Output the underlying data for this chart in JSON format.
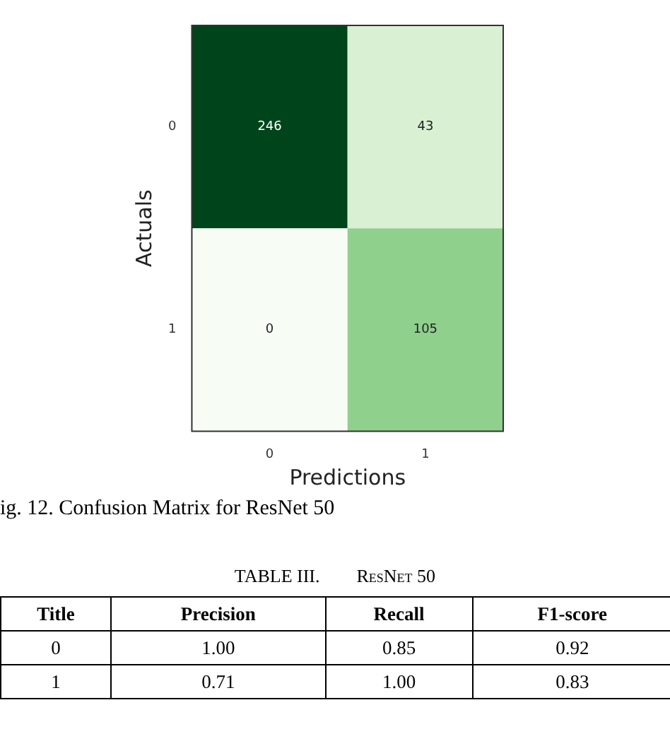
{
  "chart_data": [
    {
      "type": "heatmap",
      "categories": [
        "0",
        "1"
      ],
      "y_categories": [
        "0",
        "1"
      ],
      "cells": [
        [
          246,
          43
        ],
        [
          0,
          105
        ]
      ],
      "data_labels": true,
      "xlabel": "Predictions",
      "ylabel": "Actuals",
      "annotations": [
        "ig. 12. Confusion Matrix for ResNet 50"
      ]
    },
    {
      "type": "other",
      "title": "TABLE III.        ResNet 50",
      "ylabel": "Title",
      "categories": [
        "Precision",
        "Recall",
        "F1-score"
      ],
      "y_categories": [
        "0",
        "1"
      ],
      "cell_labels": [
        [
          "1.00",
          "0.85",
          "0.92"
        ],
        [
          "0.71",
          "1.00",
          "0.83"
        ]
      ]
    }
  ]
}
